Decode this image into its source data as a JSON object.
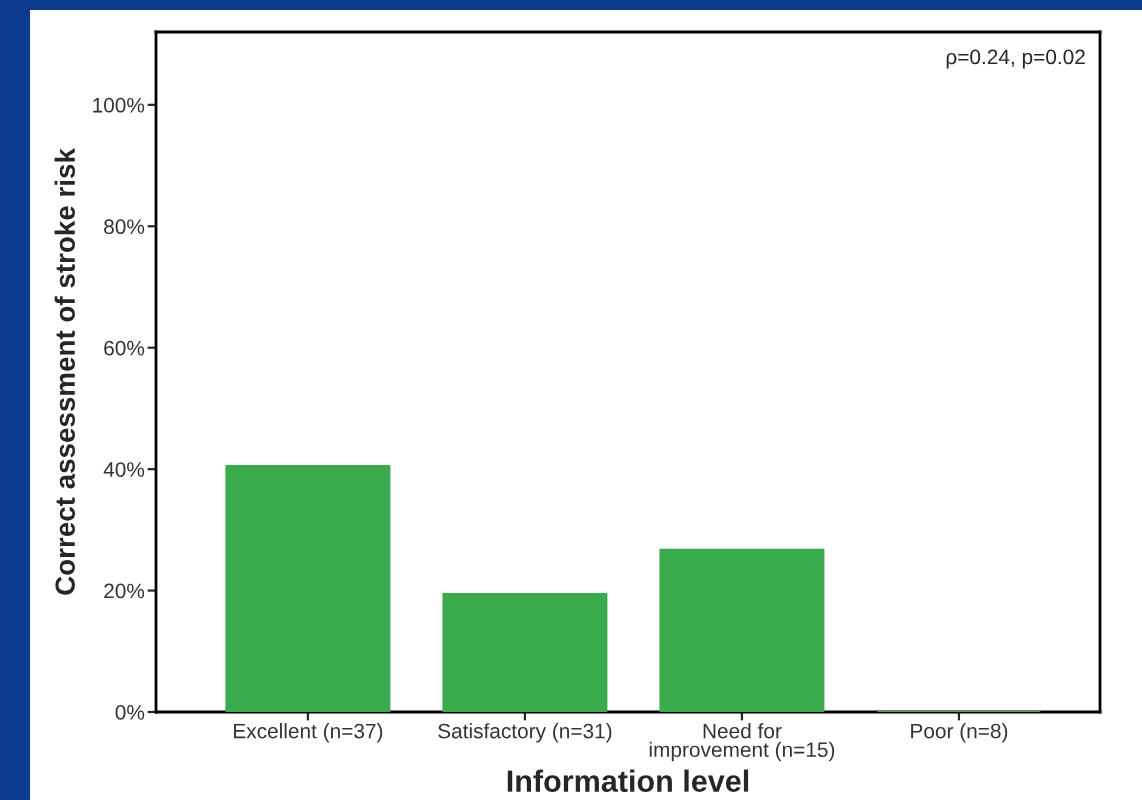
{
  "chart_data": {
    "type": "bar",
    "xlabel": "Information level",
    "ylabel": "Correct assessment of stroke risk",
    "categories": [
      "Excellent (n=37)",
      "Satisfactory (n=31)",
      "Need for\nimprovement (n=15)",
      "Poor (n=8)"
    ],
    "values": [
      40.5,
      19.4,
      26.7,
      0
    ],
    "color": "#3aab4d",
    "ylim": [
      0,
      112
    ],
    "yticks": [
      {
        "value": 0,
        "label": "0%"
      },
      {
        "value": 20,
        "label": "20%"
      },
      {
        "value": 40,
        "label": "40%"
      },
      {
        "value": 60,
        "label": "60%"
      },
      {
        "value": 80,
        "label": "80%"
      },
      {
        "value": 100,
        "label": "100%"
      }
    ],
    "annotations": [
      "ρ=0.24, p=0.02"
    ],
    "grid": false,
    "legend": false
  }
}
